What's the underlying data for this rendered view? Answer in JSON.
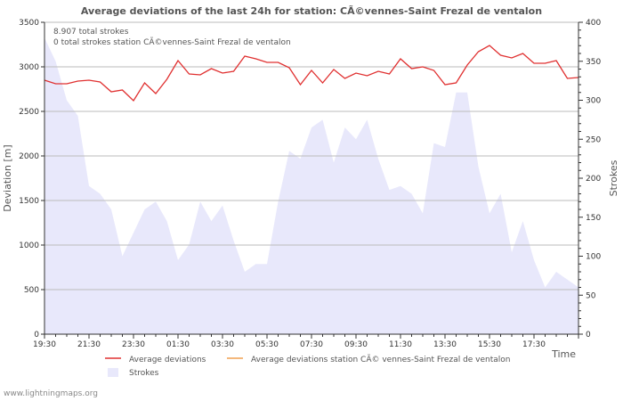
{
  "chart_data": {
    "type": "line+area",
    "title": "Average deviations of the last 24h for station: CÃ©vennes-Saint Frezal de ventalon",
    "info_lines": [
      "8.907 total strokes",
      "0 total strokes station CÃ©vennes-Saint Frezal de ventalon"
    ],
    "ylabel": "Deviation  [m]",
    "ylabel_right": "Strokes",
    "xlabel": "Time",
    "ylim": [
      0,
      3500
    ],
    "ylim_right": [
      0,
      400
    ],
    "yticks": [
      0,
      500,
      1000,
      1500,
      2000,
      2500,
      3000,
      3500
    ],
    "yticks_right": [
      0,
      50,
      100,
      150,
      200,
      250,
      300,
      350,
      400
    ],
    "x_range_minutes": [
      0,
      1440
    ],
    "x_tick_labels": [
      {
        "minute": 0,
        "label": "19:30"
      },
      {
        "minute": 120,
        "label": "21:30"
      },
      {
        "minute": 240,
        "label": "23:30"
      },
      {
        "minute": 360,
        "label": "01:30"
      },
      {
        "minute": 480,
        "label": "03:30"
      },
      {
        "minute": 600,
        "label": "05:30"
      },
      {
        "minute": 720,
        "label": "07:30"
      },
      {
        "minute": 840,
        "label": "09:30"
      },
      {
        "minute": 960,
        "label": "11:30"
      },
      {
        "minute": 1080,
        "label": "13:30"
      },
      {
        "minute": 1200,
        "label": "15:30"
      },
      {
        "minute": 1320,
        "label": "17:30"
      }
    ],
    "series": [
      {
        "name": "Average deviations",
        "color": "#e03030",
        "axis": "left",
        "x": [
          0,
          30,
          60,
          90,
          120,
          150,
          180,
          210,
          240,
          270,
          300,
          330,
          360,
          390,
          420,
          450,
          480,
          510,
          540,
          570,
          600,
          630,
          660,
          690,
          720,
          750,
          780,
          810,
          840,
          870,
          900,
          930,
          960,
          990,
          1020,
          1050,
          1080,
          1110,
          1140,
          1170,
          1200,
          1230,
          1260,
          1290,
          1320,
          1350,
          1380,
          1410,
          1440
        ],
        "values": [
          2850,
          2810,
          2810,
          2840,
          2850,
          2830,
          2720,
          2740,
          2620,
          2820,
          2700,
          2860,
          3070,
          2920,
          2910,
          2980,
          2930,
          2950,
          3120,
          3090,
          3050,
          3050,
          2990,
          2800,
          2960,
          2820,
          2970,
          2870,
          2930,
          2900,
          2950,
          2920,
          3090,
          2980,
          3000,
          2960,
          2800,
          2820,
          3020,
          3170,
          3240,
          3130,
          3100,
          3150,
          3040,
          3040,
          3070,
          2870,
          2880
        ]
      },
      {
        "name": "Average deviations station CÃ© vennes-Saint Frezal de ventalon",
        "color": "#f0a050",
        "axis": "left",
        "x": [],
        "values": []
      },
      {
        "name": "Strokes",
        "color": "#e8e8fb",
        "axis": "right",
        "type": "area",
        "x": [
          0,
          30,
          60,
          90,
          120,
          150,
          180,
          210,
          240,
          270,
          300,
          330,
          360,
          390,
          420,
          450,
          480,
          510,
          540,
          570,
          600,
          630,
          660,
          690,
          720,
          750,
          780,
          810,
          840,
          870,
          900,
          930,
          960,
          990,
          1020,
          1050,
          1080,
          1110,
          1140,
          1170,
          1200,
          1230,
          1260,
          1290,
          1320,
          1350,
          1380,
          1410,
          1440
        ],
        "values": [
          380,
          350,
          300,
          280,
          190,
          180,
          160,
          100,
          130,
          160,
          170,
          145,
          95,
          115,
          170,
          145,
          165,
          120,
          80,
          90,
          90,
          170,
          235,
          225,
          265,
          275,
          220,
          265,
          250,
          275,
          225,
          185,
          190,
          180,
          155,
          245,
          240,
          310,
          310,
          215,
          155,
          180,
          105,
          145,
          95,
          60,
          80,
          70,
          60
        ]
      }
    ],
    "legend": [
      {
        "label": "Average deviations",
        "kind": "line",
        "color": "#e03030"
      },
      {
        "label": "Average deviations station CÃ© vennes-Saint Frezal de ventalon",
        "kind": "line",
        "color": "#f0a050"
      },
      {
        "label": "Strokes",
        "kind": "square",
        "color": "#e8e8fb"
      }
    ],
    "credit": "www.lightningmaps.org"
  }
}
